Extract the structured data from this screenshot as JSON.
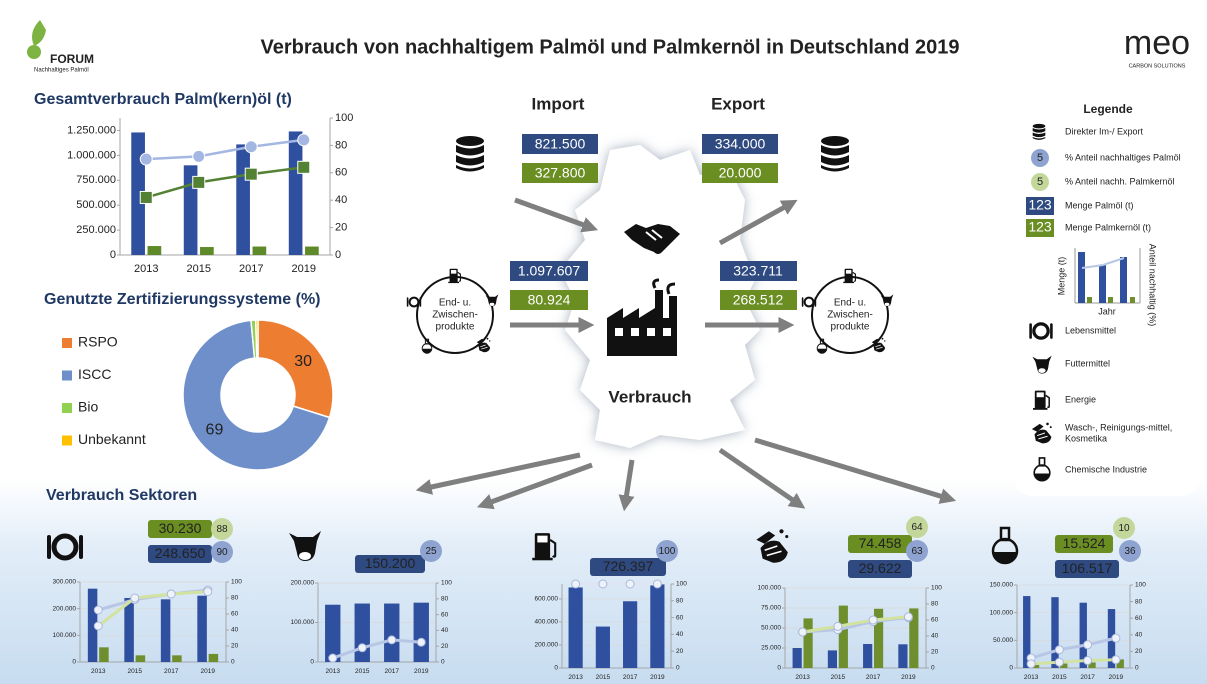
{
  "header": {
    "title": "Verbrauch von nachhaltigem Palmöl und Palmkernöl in Deutschland 2019",
    "logo_left": [
      "FORUM",
      "Nachhaltiges Palmöl"
    ],
    "logo_right": [
      "meo",
      "CARBON SOLUTIONS"
    ]
  },
  "chart_data": [
    {
      "type": "combo",
      "title": "Gesamtverbrauch Palm(kern)öl (t)",
      "categories": [
        "2013",
        "2015",
        "2017",
        "2019"
      ],
      "series": [
        {
          "type": "bar",
          "color": "#2f4f9f",
          "values": [
            1230000,
            900000,
            1110000,
            1240000
          ]
        },
        {
          "type": "bar",
          "color": "#5f8a2a",
          "values": [
            90000,
            80000,
            85000,
            85000
          ]
        },
        {
          "type": "line",
          "axis": "y2",
          "marker": "circle",
          "color": "#a4b6e2",
          "values": [
            70,
            72,
            79,
            84
          ]
        },
        {
          "type": "line",
          "axis": "y2",
          "marker": "square",
          "color": "#548235",
          "values": [
            42,
            53,
            59,
            64
          ]
        }
      ],
      "ylim": [
        0,
        1375000
      ],
      "yticks": [
        0,
        {
          "value": 250000,
          "label": "250.000"
        },
        {
          "value": 500000,
          "label": "500.000"
        },
        {
          "value": 750000,
          "label": "750.000"
        },
        {
          "value": 1000000,
          "label": "1.000.000"
        },
        {
          "value": 1250000,
          "label": "1.250.000"
        }
      ],
      "y2lim": [
        0,
        100
      ],
      "y2ticks": [
        0,
        20,
        40,
        60,
        80,
        100
      ],
      "grid": false
    },
    {
      "type": "pie",
      "title": "Genutzte Zertifizierungssysteme (%)",
      "categories": [
        "RSPO",
        "ISCC",
        "Bio",
        "Unbekannt"
      ],
      "values": [
        30,
        69,
        1,
        0.5
      ],
      "colors": [
        "#ed7d31",
        "#6e8fc9",
        "#92d050",
        "#ffc000"
      ]
    },
    {
      "type": "combo",
      "categories": [
        "2013",
        "2015",
        "2017",
        "2019"
      ],
      "series": [
        {
          "type": "bar",
          "color": "#2f4f9f",
          "values": [
            275000,
            240000,
            235000,
            248650
          ],
          "value_labels": [
            null,
            null,
            null,
            "248.650"
          ]
        },
        {
          "type": "bar",
          "color": "#6f8f2f",
          "values": [
            55000,
            25000,
            25000,
            30230
          ],
          "value_labels": [
            null,
            null,
            null,
            "30.230"
          ]
        },
        {
          "type": "line",
          "axis": "y2",
          "marker": "circle",
          "color": "#b8c6e6",
          "values": [
            65,
            78,
            85,
            90
          ]
        },
        {
          "type": "line",
          "axis": "y2",
          "marker": "circle",
          "color": "#d2e3a0",
          "values": [
            45,
            80,
            85,
            88
          ]
        }
      ],
      "ylim": [
        0,
        300000
      ],
      "yticks": [
        0,
        {
          "value": 100000,
          "label": "100.000"
        },
        {
          "value": 200000,
          "label": "200.000"
        },
        {
          "value": 300000,
          "label": "300.000"
        }
      ],
      "y2lim": [
        0,
        100
      ],
      "y2ticks": [
        0,
        20,
        40,
        60,
        80,
        100
      ],
      "grid": true
    },
    {
      "type": "combo",
      "categories": [
        "2013",
        "2015",
        "2017",
        "2019"
      ],
      "series": [
        {
          "type": "bar",
          "color": "#2f4f9f",
          "values": [
            145000,
            148000,
            148000,
            150200
          ],
          "value_labels": [
            null,
            null,
            null,
            "150.200"
          ]
        },
        {
          "type": "line",
          "axis": "y2",
          "marker": "circle",
          "color": "#b8c6e6",
          "values": [
            5,
            18,
            28,
            25
          ]
        }
      ],
      "ylim": [
        0,
        200000
      ],
      "yticks": [
        0,
        {
          "value": 100000,
          "label": "100.000"
        },
        {
          "value": 200000,
          "label": "200.000"
        }
      ],
      "y2lim": [
        0,
        100
      ],
      "y2ticks": [
        0,
        20,
        40,
        60,
        80,
        100
      ],
      "grid": true
    },
    {
      "type": "combo",
      "categories": [
        "2013",
        "2015",
        "2017",
        "2019"
      ],
      "series": [
        {
          "type": "bar",
          "color": "#2f4f9f",
          "values": [
            700000,
            360000,
            580000,
            726397
          ],
          "value_labels": [
            null,
            null,
            null,
            "726.397"
          ]
        },
        {
          "type": "line",
          "axis": "y2",
          "marker": "circle",
          "color": "#dfe6f3",
          "values": [
            100,
            100,
            100,
            100
          ]
        }
      ],
      "ylim": [
        0,
        730000
      ],
      "yticks": [
        0,
        {
          "value": 200000,
          "label": "200.000"
        },
        {
          "value": 400000,
          "label": "400.000"
        },
        {
          "value": 600000,
          "label": "600.000"
        }
      ],
      "y2lim": [
        0,
        100
      ],
      "y2ticks": [
        0,
        20,
        40,
        60,
        80,
        100
      ],
      "grid": true
    },
    {
      "type": "combo",
      "categories": [
        "2013",
        "2015",
        "2017",
        "2019"
      ],
      "series": [
        {
          "type": "bar",
          "color": "#2f4f9f",
          "values": [
            25000,
            22000,
            30000,
            29622
          ],
          "value_labels": [
            null,
            null,
            null,
            "29.622"
          ]
        },
        {
          "type": "bar",
          "color": "#6f8f2f",
          "values": [
            62000,
            78000,
            74000,
            74458
          ],
          "value_labels": [
            null,
            null,
            null,
            "74.458"
          ]
        },
        {
          "type": "line",
          "axis": "y2",
          "marker": "circle",
          "color": "#b8c6e6",
          "values": [
            45,
            48,
            58,
            63
          ]
        },
        {
          "type": "line",
          "axis": "y2",
          "marker": "circle",
          "color": "#d2e3a0",
          "values": [
            45,
            52,
            60,
            64
          ]
        }
      ],
      "ylim": [
        0,
        100000
      ],
      "yticks": [
        0,
        {
          "value": 25000,
          "label": "25.000"
        },
        {
          "value": 50000,
          "label": "50.000"
        },
        {
          "value": 75000,
          "label": "75.000"
        },
        {
          "value": 100000,
          "label": "100.000"
        }
      ],
      "y2lim": [
        0,
        100
      ],
      "y2ticks": [
        0,
        20,
        40,
        60,
        80,
        100
      ],
      "grid": true
    },
    {
      "type": "combo",
      "categories": [
        "2013",
        "2015",
        "2017",
        "2019"
      ],
      "series": [
        {
          "type": "bar",
          "color": "#2f4f9f",
          "values": [
            130000,
            128000,
            118000,
            106517
          ],
          "value_labels": [
            null,
            null,
            null,
            "106.517"
          ]
        },
        {
          "type": "bar",
          "color": "#6f8f2f",
          "values": [
            8000,
            8000,
            10000,
            15524
          ],
          "value_labels": [
            null,
            null,
            null,
            "15.524"
          ]
        },
        {
          "type": "line",
          "axis": "y2",
          "marker": "circle",
          "color": "#b8c6e6",
          "values": [
            12,
            22,
            28,
            36
          ]
        },
        {
          "type": "line",
          "axis": "y2",
          "marker": "circle",
          "color": "#d2e3a0",
          "values": [
            5,
            7,
            9,
            10
          ]
        }
      ],
      "ylim": [
        0,
        150000
      ],
      "yticks": [
        0,
        {
          "value": 50000,
          "label": "50.000"
        },
        {
          "value": 100000,
          "label": "100.000"
        },
        {
          "value": 150000,
          "label": "150.000"
        }
      ],
      "y2lim": [
        0,
        100
      ],
      "y2ticks": [
        0,
        20,
        40,
        60,
        80,
        100
      ],
      "grid": true
    }
  ],
  "sections": {
    "sectors_title": "Verbrauch Sektoren"
  },
  "flow": {
    "import_label": "Import",
    "export_label": "Export",
    "center_label": "Verbrauch",
    "products_label": [
      "End- u.",
      "Zwischen-",
      "produkte"
    ],
    "import": {
      "palm_oil": "821.500",
      "palm_kernel_oil": "327.800"
    },
    "export": {
      "palm_oil": "334.000",
      "palm_kernel_oil": "20.000"
    },
    "products_in": {
      "palm_oil": "1.097.607",
      "palm_kernel_oil": "80.924"
    },
    "products_out": {
      "palm_oil": "323.711",
      "palm_kernel_oil": "268.512"
    }
  },
  "legend": {
    "title": "Legende",
    "items": [
      {
        "label": "Direkter Im-/ Export"
      },
      {
        "symbol": "5",
        "label": "% Anteil nachhaltiges Palmöl"
      },
      {
        "symbol": "5",
        "label": "% Anteil nachh. Palmkernöl"
      },
      {
        "symbol": "123",
        "label": "Menge Palmöl  (t)"
      },
      {
        "symbol": "123",
        "label": "Menge Palmkernöl  (t)"
      },
      {
        "label": "Lebensmittel"
      },
      {
        "label": "Futtermittel"
      },
      {
        "label": "Energie"
      },
      {
        "label": "Wasch-, Reinigungs-mittel,",
        "label_line2": "Kosmetika"
      },
      {
        "label": "Chemische Industrie"
      }
    ],
    "mini_chart": {
      "y_label": "Menge (t)",
      "y2_label": "Anteil nachhaltig (%)",
      "x_label": "Jahr"
    }
  }
}
